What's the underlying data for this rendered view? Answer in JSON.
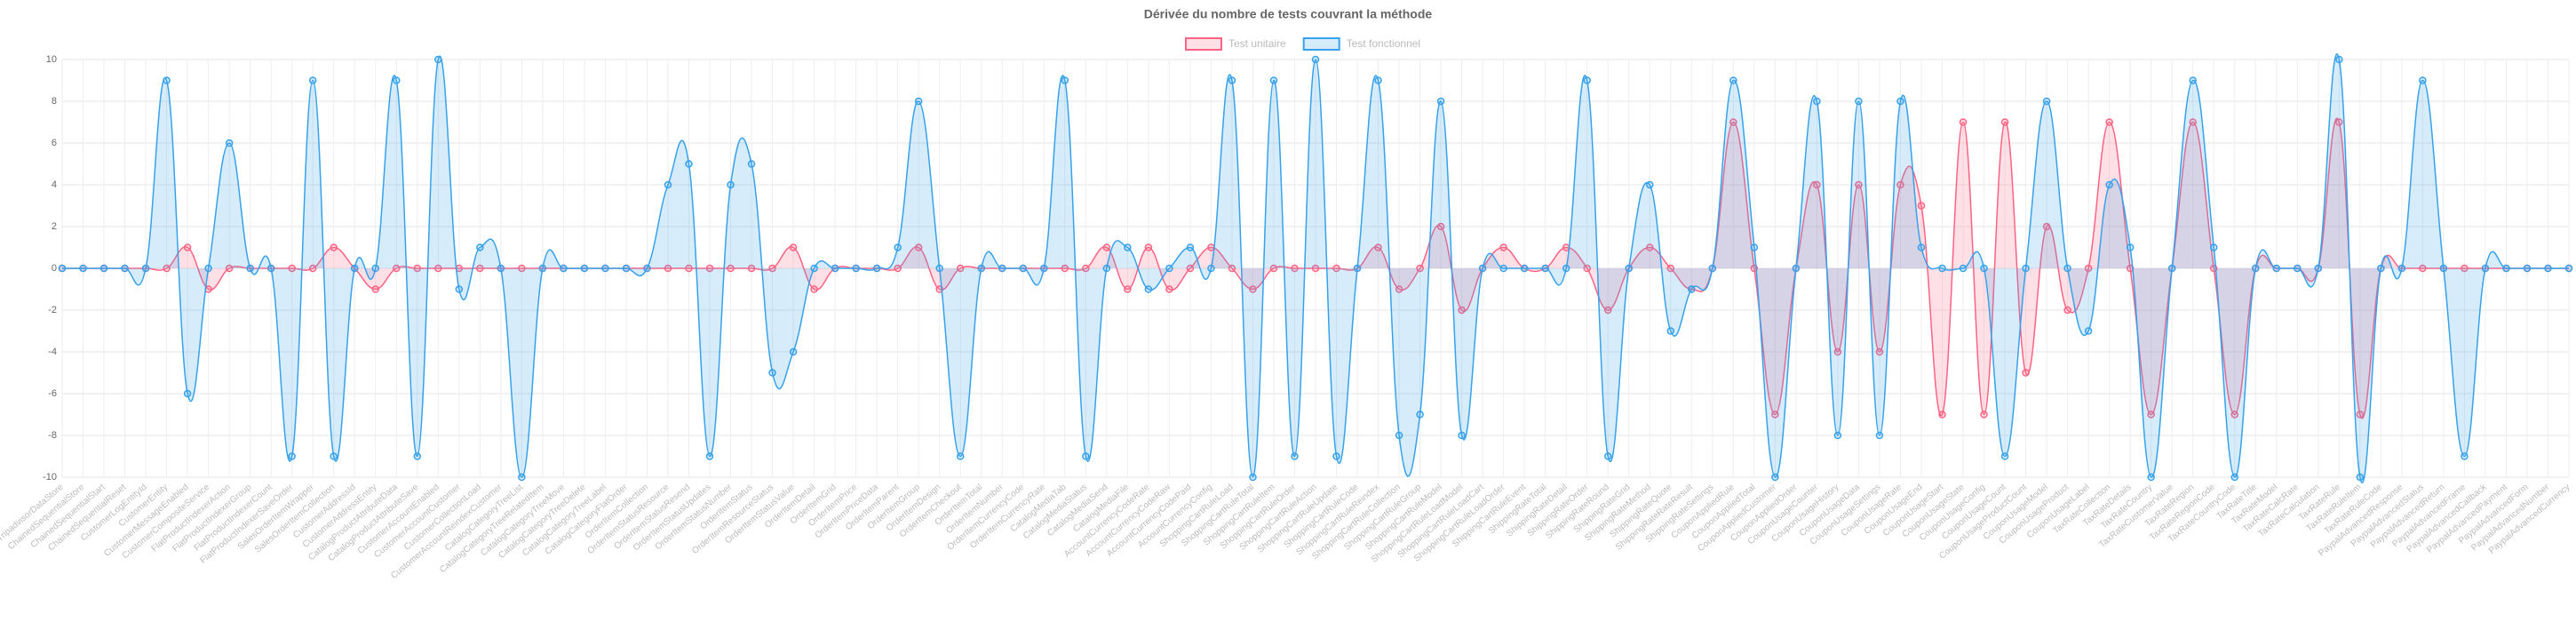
{
  "chart_data": {
    "type": "line",
    "title": "Dérivée du nombre de tests couvrant la méthode",
    "categories": [
      "TripadvisorDataStore",
      "ChainedSequentialStore",
      "ChainedSequentialStart",
      "ChainedSequentialReset",
      "CustomerLogEntityId",
      "CustomerEntity",
      "CustomerMessageEnabled",
      "CustomerCompositeService",
      "FlatProductIndexerAction",
      "FlatProductIndexerGroup",
      "FlatProductIndexerCount",
      "FlatProductIndexerSaveOrder",
      "SalesOrderItemWrapper",
      "SalesOrderItemCollection",
      "CustomerAddressId",
      "CustomerAddressEntity",
      "CatalogProductAttributeData",
      "CatalogProductAttributeSave",
      "CustomerAccountEnabled",
      "CustomerAccountCustomer",
      "CustomerCollectionLoad",
      "CustomerAccountReindexCustomer",
      "CatalogCategoryTreeList",
      "CatalogCategoryTreeRelatedItem",
      "CatalogCategoryTreeMove",
      "CatalogCategoryTreeDelete",
      "CatalogCategoryTreeLabel",
      "CatalogCategoryFlatOrder",
      "OrderItemCollection",
      "OrderItemStatusResource",
      "OrderItemStatusResend",
      "OrderItemStatusUpdates",
      "OrderItemStatusNumber",
      "OrderItemStatus",
      "OrderItemResourceStatus",
      "OrderItemStatusValue",
      "OrderItemDetail",
      "OrderItemGrid",
      "OrderItemPrice",
      "OrderItemPriceData",
      "OrderItemParent",
      "OrderItemGroup",
      "OrderItemDesign",
      "OrderItemCheckout",
      "OrderItemTotal",
      "OrderItemNumber",
      "OrderItemCurrencyCode",
      "OrderItemCurrencyRate",
      "CatalogMediaTab",
      "CatalogMediaStatus",
      "CatalogMediaSend",
      "CatalogMediaFile",
      "AccountCurrencyCodeRate",
      "AccountCurrencyCodeRaw",
      "AccountCurrencyCodePaid",
      "AccountCurrencyConfig",
      "ShoppingCartRuleLoad",
      "ShoppingCartRuleTotal",
      "ShoppingCartRuleItem",
      "ShoppingCartRuleOrder",
      "ShoppingCartRuleAction",
      "ShoppingCartRuleUpdate",
      "ShoppingCartRuleCode",
      "ShoppingCartRuleReindex",
      "ShoppingCartRuleCollection",
      "ShoppingCartRuleGroup",
      "ShoppingCartRuleModel",
      "ShoppingCartRuleLoadModel",
      "ShoppingCartRuleLoadCart",
      "ShoppingCartRuleLoadOrder",
      "ShippingCartRuleEvent",
      "ShippingRateTotal",
      "ShippingRateDetail",
      "ShippingRateOrder",
      "ShippingRateRound",
      "ShippingRateGrid",
      "ShippingRateMethod",
      "ShippingRateQuote",
      "ShippingRateRateResult",
      "ShippingRateSettings",
      "CouponAppliedRule",
      "CouponAppliedTotal",
      "CouponAppliedCustomer",
      "CouponAppliedOrder",
      "CouponUsageCounter",
      "CouponUsageHistory",
      "CouponUsageData",
      "CouponUsageSettings",
      "CouponUsageRate",
      "CouponUsageEnd",
      "CouponUsageStart",
      "CouponUsageState",
      "CouponUsageConfig",
      "CouponUsageCount",
      "CouponUsageProductCount",
      "CouponUsageModel",
      "CouponUsageProduct",
      "CouponUsageLabel",
      "TaxRateCollection",
      "TaxRateDetails",
      "TaxRateCountry",
      "TaxRateCustomerValue",
      "TaxRateRegion",
      "TaxRateRegionCode",
      "TaxRateCountryCode",
      "TaxRateTitle",
      "TaxRateModel",
      "TaxRateCalcRate",
      "TaxRateCalculation",
      "TaxRateRule",
      "TaxRateRuleItem",
      "TaxRateRuleCode",
      "PaypalAdvancedResponse",
      "PaypalAdvancedStatus",
      "PaypalAdvancedReturn",
      "PaypalAdvancedFrame",
      "PaypalAdvancedCallback",
      "PaypalAdvancedPayment",
      "PaypalAdvancedForm",
      "PaypalAdvancedNumber",
      "PaypalAdvancedCurrency"
    ],
    "series": [
      {
        "name": "Test unitaire",
        "color": "#ff6384",
        "fill": "rgba(255,99,132,0.2)",
        "values": [
          0,
          0,
          0,
          0,
          0,
          0,
          1,
          -1,
          0,
          0,
          0,
          0,
          0,
          1,
          0,
          -1,
          0,
          0,
          0,
          0,
          0,
          0,
          0,
          0,
          0,
          0,
          0,
          0,
          0,
          0,
          0,
          0,
          0,
          0,
          0,
          1,
          -1,
          0,
          0,
          0,
          0,
          1,
          -1,
          0,
          0,
          0,
          0,
          0,
          0,
          0,
          1,
          -1,
          1,
          -1,
          0,
          1,
          0,
          -1,
          0,
          0,
          0,
          0,
          0,
          1,
          -1,
          0,
          2,
          -2,
          0,
          1,
          0,
          0,
          1,
          0,
          -2,
          0,
          1,
          0,
          -1,
          0,
          7,
          0,
          -7,
          0,
          4,
          -4,
          4,
          -4,
          4,
          3,
          -7,
          7,
          -7,
          7,
          -5,
          2,
          -2,
          0,
          7,
          0,
          -7,
          0,
          7,
          0,
          -7,
          0,
          0,
          0,
          0,
          7,
          -7,
          0,
          0,
          0,
          0,
          0,
          0,
          0,
          0,
          0,
          0
        ]
      },
      {
        "name": "Test fonctionnel",
        "color": "#36a2eb",
        "fill": "rgba(54,162,235,0.2)",
        "values": [
          0,
          0,
          0,
          0,
          0,
          9,
          -6,
          0,
          6,
          0,
          0,
          -9,
          9,
          -9,
          0,
          0,
          9,
          -9,
          10,
          -1,
          1,
          0,
          -10,
          0,
          0,
          0,
          0,
          0,
          0,
          4,
          5,
          -9,
          4,
          5,
          -5,
          -4,
          0,
          0,
          0,
          0,
          1,
          8,
          0,
          -9,
          0,
          0,
          0,
          0,
          9,
          -9,
          0,
          1,
          -1,
          0,
          1,
          0,
          9,
          -10,
          9,
          -9,
          10,
          -9,
          0,
          9,
          -8,
          -7,
          8,
          -8,
          0,
          0,
          0,
          0,
          0,
          9,
          -9,
          0,
          4,
          -3,
          -1,
          0,
          9,
          1,
          -10,
          0,
          8,
          -8,
          8,
          -8,
          8,
          1,
          0,
          0,
          0,
          -9,
          0,
          8,
          0,
          -3,
          4,
          1,
          -10,
          0,
          9,
          1,
          -10,
          0,
          0,
          0,
          0,
          10,
          -10,
          0,
          0,
          9,
          0,
          -9,
          0,
          0,
          0,
          0,
          0
        ]
      }
    ],
    "ylim": [
      -10,
      10
    ],
    "yticks": [
      -10,
      -8,
      -6,
      -4,
      -2,
      0,
      2,
      4,
      6,
      8,
      10
    ],
    "grid": true,
    "legend": "top"
  }
}
